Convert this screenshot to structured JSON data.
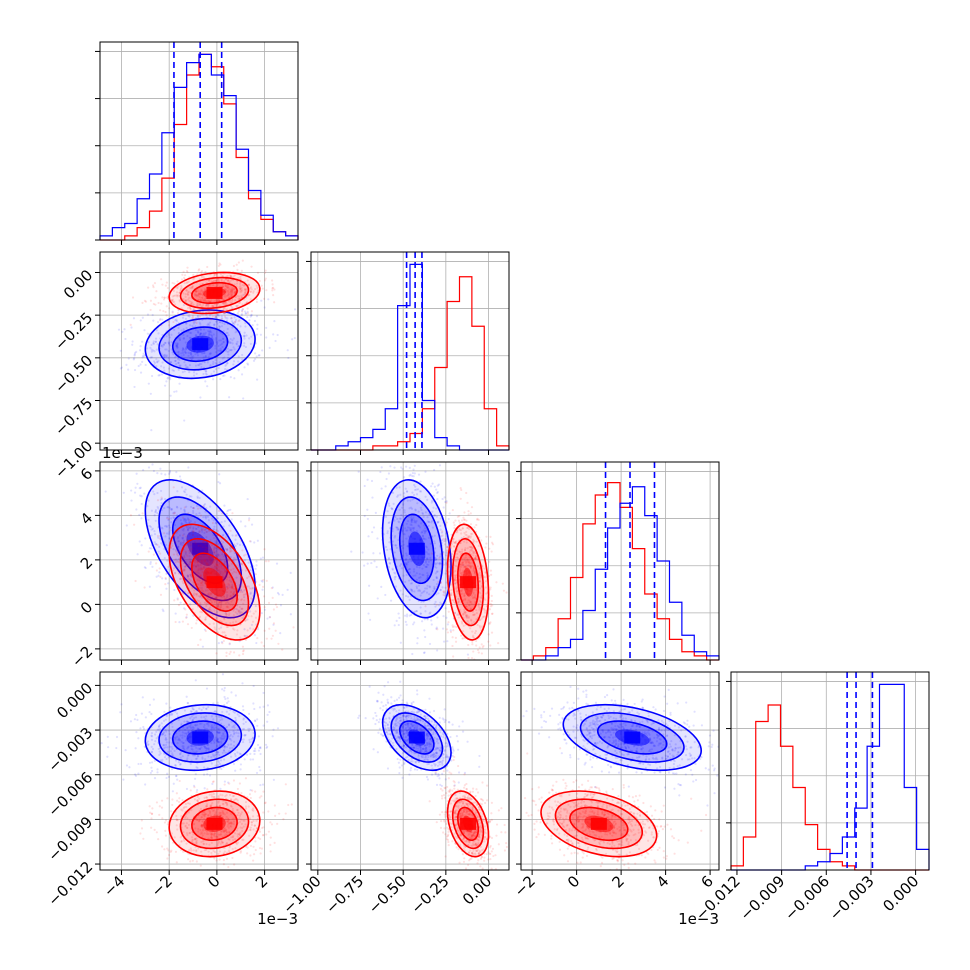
{
  "chart_data": {
    "type": "corner",
    "title": "",
    "n_params": 4,
    "series": [
      {
        "name": "",
        "color": "#0000ff",
        "mean": [
          -0.0007,
          -0.42,
          0.0025,
          -0.0035
        ],
        "sd": [
          0.00115,
          0.1,
          0.00155,
          0.0011
        ],
        "quantiles": [
          [
            -0.0018,
            -0.0007,
            0.0002
          ],
          [
            -0.48,
            -0.43,
            -0.39
          ],
          [
            0.0013,
            0.0024,
            0.0035
          ],
          [
            -0.0046,
            -0.004,
            -0.0029
          ]
        ]
      },
      {
        "name": "",
        "color": "#ff0000",
        "mean": [
          -0.0001,
          -0.12,
          0.001,
          -0.0093
        ],
        "sd": [
          0.00095,
          0.06,
          0.0013,
          0.0011
        ]
      }
    ],
    "diagonal_histograms": [
      {
        "param": 0,
        "blue_counts": [
          1,
          3,
          4,
          10,
          16,
          26,
          37,
          43,
          45,
          40,
          35,
          22,
          12,
          6,
          2,
          1
        ],
        "red_counts": [
          0,
          0,
          1,
          3,
          7,
          15,
          28,
          40,
          45,
          42,
          33,
          20,
          10,
          5,
          2,
          1
        ],
        "ylim": [
          0,
          48
        ]
      },
      {
        "param": 1,
        "blue_counts": [
          0,
          0,
          1,
          2,
          3,
          5,
          10,
          35,
          45,
          12,
          3,
          1,
          0,
          0,
          0,
          0
        ],
        "red_counts": [
          0,
          0,
          0,
          0,
          0,
          1,
          1,
          2,
          4,
          10,
          20,
          36,
          42,
          30,
          10,
          1
        ],
        "ylim": [
          0,
          48
        ]
      },
      {
        "param": 2,
        "blue_counts": [
          0,
          0,
          1,
          3,
          5,
          12,
          22,
          32,
          38,
          42,
          35,
          24,
          14,
          6,
          2,
          1
        ],
        "red_counts": [
          0,
          1,
          3,
          10,
          20,
          33,
          40,
          43,
          37,
          27,
          16,
          10,
          5,
          2,
          1,
          0
        ],
        "ylim": [
          0,
          48
        ]
      },
      {
        "param": 3,
        "blue_counts": [
          0,
          0,
          0,
          0,
          0,
          0,
          1,
          2,
          4,
          8,
          15,
          30,
          45,
          45,
          20,
          5
        ],
        "red_counts": [
          1,
          8,
          36,
          40,
          30,
          20,
          11,
          5,
          2,
          1,
          0,
          0,
          0,
          0,
          0,
          0
        ],
        "ylim": [
          0,
          48
        ]
      }
    ],
    "axes": [
      {
        "range": [
          -0.0049,
          0.0034
        ],
        "ticks": [
          -4,
          -2,
          0,
          2
        ],
        "tick_scale": 0.001,
        "offset_label": "1e−3"
      },
      {
        "range": [
          -1.04,
          0.12
        ],
        "ticks": [
          -1.0,
          -0.75,
          -0.5,
          -0.25,
          0.0
        ],
        "tick_scale": 1,
        "offset_label": ""
      },
      {
        "range": [
          -0.0025,
          0.0064
        ],
        "ticks": [
          -2,
          0,
          2,
          4,
          6
        ],
        "tick_scale": 0.001,
        "offset_label": "1e−3"
      },
      {
        "range": [
          -0.0124,
          0.0009
        ],
        "ticks": [
          -0.012,
          -0.009,
          -0.006,
          -0.003,
          0.0
        ],
        "tick_scale": 1,
        "offset_label": ""
      }
    ],
    "labels": {
      "x_ticks": [
        [
          "−4",
          "−2",
          "0",
          "2"
        ],
        [
          "−1.00",
          "−0.75",
          "−0.50",
          "−0.25",
          "0.00"
        ],
        [
          "−2",
          "0",
          "2",
          "4",
          "6"
        ],
        [
          "−0.012",
          "−0.009",
          "−0.006",
          "−0.003",
          "0.000"
        ]
      ],
      "y_ticks": [
        null,
        [
          "−1.00",
          "−0.75",
          "−0.50",
          "−0.25",
          "0.00"
        ],
        [
          "−2",
          "0",
          "2",
          "4",
          "6"
        ],
        [
          "−0.012",
          "−0.009",
          "−0.006",
          "−0.003",
          "0.000"
        ]
      ],
      "x_offset": [
        "1e−3",
        "",
        "1e−3",
        ""
      ],
      "y_offset_param2": "1e−3"
    },
    "grid": true,
    "contour_levels": [
      0.5,
      1.0,
      1.5,
      2.0
    ]
  }
}
